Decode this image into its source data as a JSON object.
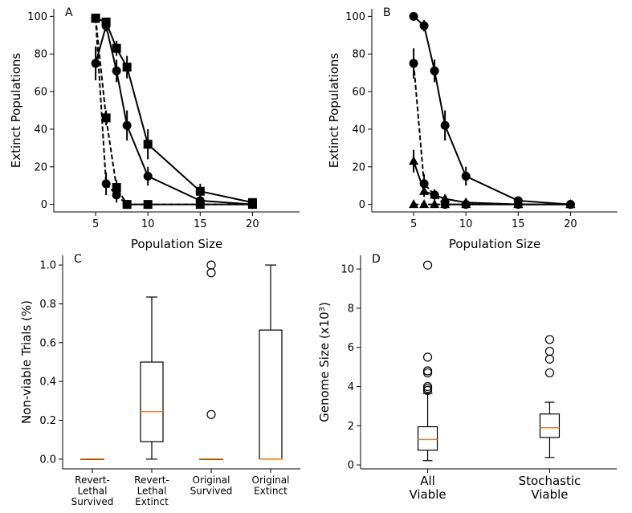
{
  "chart_data": [
    {
      "panel": "A",
      "type": "line",
      "xlabel": "Population Size",
      "ylabel": "Extinct Populations",
      "xticks": [
        5,
        10,
        15,
        20
      ],
      "yticks": [
        0,
        20,
        40,
        60,
        80,
        100
      ],
      "xlim": [
        1,
        24.5
      ],
      "ylim": [
        -4,
        104
      ],
      "series": [
        {
          "marker": "circle",
          "dash": false,
          "x": [
            5,
            6,
            7,
            8,
            10,
            15,
            20
          ],
          "y": [
            75,
            95,
            71,
            42,
            15,
            2,
            0
          ],
          "err": [
            9,
            3,
            6,
            8,
            5,
            2,
            1
          ]
        },
        {
          "marker": "square",
          "dash": false,
          "x": [
            5,
            6,
            7,
            8,
            10,
            15,
            20
          ],
          "y": [
            99,
            97,
            83,
            73,
            32,
            7,
            1
          ],
          "err": [
            1,
            2,
            4,
            6,
            8,
            4,
            1
          ]
        },
        {
          "marker": "circle",
          "dash": true,
          "x": [
            5,
            6,
            7,
            8,
            10,
            15,
            20
          ],
          "y": [
            99,
            11,
            5,
            0,
            0,
            0,
            0
          ],
          "err": [
            1,
            6,
            4,
            0,
            0,
            0,
            0
          ]
        },
        {
          "marker": "square",
          "dash": true,
          "x": [
            5,
            6,
            7,
            8,
            10,
            15,
            20
          ],
          "y": [
            99,
            46,
            9,
            0,
            0,
            0,
            0
          ],
          "err": [
            1,
            4,
            4,
            0,
            0,
            0,
            0
          ]
        }
      ]
    },
    {
      "panel": "B",
      "type": "line",
      "xlabel": "Population Size",
      "ylabel": "Extinct Populations",
      "xticks": [
        5,
        10,
        15,
        20
      ],
      "yticks": [
        0,
        20,
        40,
        60,
        80,
        100
      ],
      "xlim": [
        1,
        24.5
      ],
      "ylim": [
        -4,
        104
      ],
      "series": [
        {
          "marker": "circle",
          "dash": false,
          "x": [
            5,
            6,
            7,
            8,
            10,
            15,
            20
          ],
          "y": [
            100,
            95,
            71,
            42,
            15,
            2,
            0
          ],
          "err": [
            0,
            3,
            6,
            8,
            5,
            2,
            1
          ]
        },
        {
          "marker": "circle",
          "dash": true,
          "x": [
            5,
            6,
            7,
            8,
            10,
            15,
            20
          ],
          "y": [
            75,
            11,
            5,
            0,
            0,
            0,
            0
          ],
          "err": [
            8,
            5,
            3,
            0,
            0,
            0,
            0
          ]
        },
        {
          "marker": "triangle",
          "dash": false,
          "x": [
            5,
            6,
            7,
            8,
            10,
            15,
            20
          ],
          "y": [
            23,
            7,
            5,
            3,
            1,
            0,
            0
          ],
          "err": [
            6,
            3,
            2,
            2,
            1,
            0,
            0
          ]
        },
        {
          "marker": "triangle",
          "dash": true,
          "x": [
            5,
            6,
            7,
            8,
            10,
            15,
            20
          ],
          "y": [
            0,
            0,
            0,
            0,
            0,
            0,
            0
          ],
          "err": [
            0,
            0,
            0,
            0,
            0,
            0,
            0
          ]
        }
      ]
    },
    {
      "panel": "C",
      "type": "box",
      "ylabel": "Non-viable Trials (%)",
      "ylim": [
        -0.05,
        1.05
      ],
      "yticks": [
        "0.0",
        "0.2",
        "0.4",
        "0.6",
        "0.8",
        "1.0"
      ],
      "boxes": [
        {
          "label": [
            "Revert-",
            "Lethal",
            "Survived"
          ],
          "q1": 0,
          "median": 0,
          "q3": 0,
          "lo": 0,
          "hi": 0,
          "outliers": []
        },
        {
          "label": [
            "Revert-",
            "Lethal",
            "Extinct"
          ],
          "q1": 0.09,
          "median": 0.245,
          "q3": 0.5,
          "lo": 0,
          "hi": 0.835,
          "outliers": []
        },
        {
          "label": [
            "Original",
            "Survived"
          ],
          "q1": 0,
          "median": 0,
          "q3": 0,
          "lo": 0,
          "hi": 0,
          "outliers": [
            0.23,
            0.96,
            1.0
          ]
        },
        {
          "label": [
            "Original",
            "Extinct"
          ],
          "q1": 0,
          "median": 0,
          "q3": 0.665,
          "lo": 0,
          "hi": 1.0,
          "outliers": []
        }
      ]
    },
    {
      "panel": "D",
      "type": "box",
      "ylabel": "Genome Size (x10",
      "ylabel_sup": "3",
      "ylabel_end": ")",
      "ylim": [
        -0.2,
        10.7
      ],
      "yticks": [
        "0",
        "2",
        "4",
        "6",
        "8",
        "10"
      ],
      "boxes": [
        {
          "label": [
            "All",
            "Viable"
          ],
          "q1": 0.75,
          "median": 1.3,
          "q3": 1.95,
          "lo": 0.22,
          "hi": 3.65,
          "outliers": [
            3.8,
            3.9,
            4.0,
            4.7,
            4.8,
            5.5,
            10.2
          ]
        },
        {
          "label": [
            "Stochastic",
            "Viable"
          ],
          "q1": 1.4,
          "median": 1.9,
          "q3": 2.6,
          "lo": 0.38,
          "hi": 3.2,
          "outliers": [
            4.7,
            5.4,
            5.8,
            6.4
          ]
        }
      ]
    }
  ],
  "colors": {
    "line": "#000000",
    "median": "#ff7f0e",
    "background": "#ffffff"
  }
}
